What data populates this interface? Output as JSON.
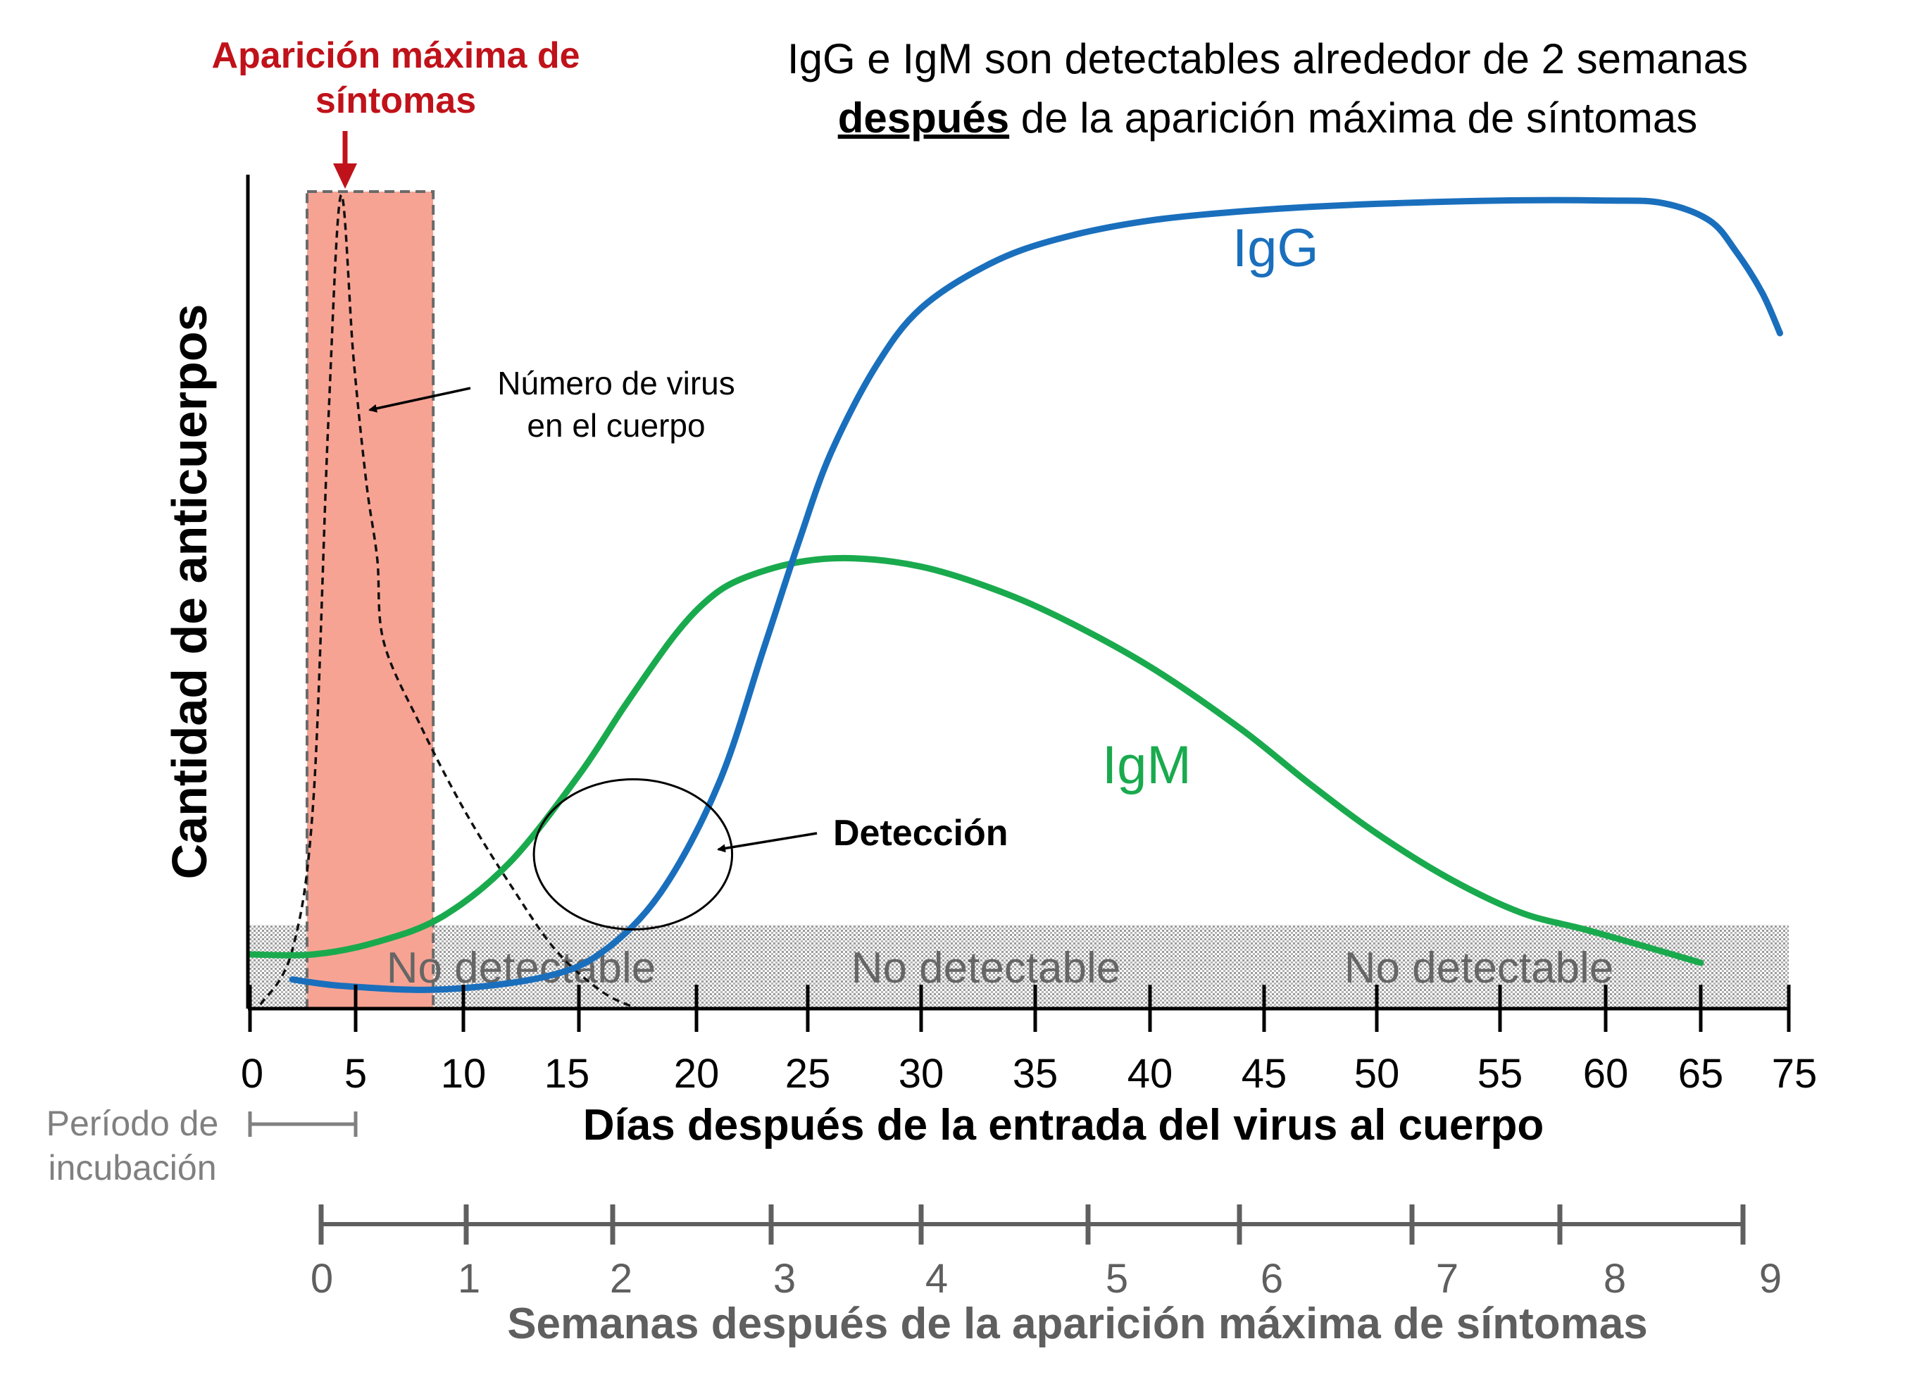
{
  "chart_data": {
    "type": "line",
    "title_line1": "IgG e IgM son detectables alrededor de 2 semanas",
    "title_line2_bold": "después",
    "title_line2_rest": " de la aparición máxima de síntomas",
    "peak_label_line1": "Aparición máxima de",
    "peak_label_line2": "síntomas",
    "virus_label_line1": "Número de virus",
    "virus_label_line2": "en el cuerpo",
    "detection_label": "Detección",
    "no_detectable_labels": [
      "No detectable",
      "No detectable",
      "No detectable"
    ],
    "incubation_label_line1": "Período de",
    "incubation_label_line2": "incubación",
    "ylabel": "Cantidad de anticuerpos",
    "xlabel": "Días después de la entrada del virus al cuerpo",
    "x2label": "Semanas después de la aparición máxima de síntomas",
    "x_ticks": [
      "0",
      "5",
      "10",
      "15",
      "20",
      "25",
      "30",
      "35",
      "40",
      "45",
      "50",
      "55",
      "60",
      "65",
      "75"
    ],
    "x2_ticks": [
      "0",
      "1",
      "2",
      "3",
      "4",
      "5",
      "6",
      "7",
      "8",
      "9"
    ],
    "series": [
      {
        "name": "IgG",
        "color": "#1a6fbd",
        "x": [
          2.0,
          4.5,
          9.0,
          13.5,
          16.0,
          18.5,
          21.0,
          23.0,
          24.6,
          26.0,
          28.0,
          30.0,
          33.0,
          36.0,
          40.0,
          45.0,
          50.0,
          55.0,
          60.0,
          63.0,
          66.0,
          69.0,
          72.0,
          74.0
        ],
        "y": [
          3.5,
          2.7,
          2.3,
          3.8,
          6.8,
          14.0,
          27.0,
          43.0,
          56.0,
          66.5,
          77.0,
          84.0,
          89.3,
          92.3,
          94.5,
          95.8,
          96.5,
          96.9,
          96.9,
          96.6,
          94.5,
          90.8,
          85.8,
          81.0
        ]
      },
      {
        "name": "IgM",
        "color": "#1aaa4e",
        "x": [
          0.0,
          3.0,
          6.0,
          9.0,
          12.0,
          15.0,
          17.0,
          19.0,
          20.5,
          22.0,
          24.5,
          27.0,
          30.0,
          33.0,
          36.0,
          40.0,
          44.0,
          47.0,
          50.0,
          53.0,
          56.0,
          59.0,
          62.0,
          65.0
        ],
        "y": [
          6.5,
          6.5,
          8.0,
          11.0,
          17.5,
          28.0,
          36.5,
          44.5,
          49.0,
          51.5,
          53.5,
          54.0,
          53.0,
          50.5,
          47.0,
          41.0,
          33.5,
          27.0,
          21.0,
          15.5,
          11.5,
          9.5,
          7.5,
          5.5
        ]
      }
    ],
    "virus_curve": {
      "name": "Número de virus en el cuerpo",
      "x": [
        0.5,
        2.0,
        3.0,
        3.7,
        4.3,
        4.9,
        5.5,
        6.0,
        6.3,
        8.0,
        10.0,
        12.0,
        14.0,
        16.0,
        17.5
      ],
      "y": [
        0.5,
        7.0,
        25.0,
        70.0,
        97.5,
        78.0,
        63.0,
        54.0,
        44.0,
        34.0,
        24.0,
        15.0,
        7.0,
        2.0,
        0.0
      ]
    },
    "peak_symptoms_day": 4.5,
    "peak_band_days": [
      2.7,
      8.6
    ],
    "no_detect_threshold": 10,
    "incubation_days": [
      0,
      5
    ],
    "detection_ellipse": {
      "cx_day": 17.3,
      "cy": 18.5,
      "rx_days": 4.3,
      "ry": 9.0
    },
    "ylim": [
      0,
      100
    ],
    "colors": {
      "band_fill": "#f7a393",
      "peak_red": "#c0121a",
      "gray": "#5f5f5f",
      "light_gray": "#808080"
    }
  }
}
